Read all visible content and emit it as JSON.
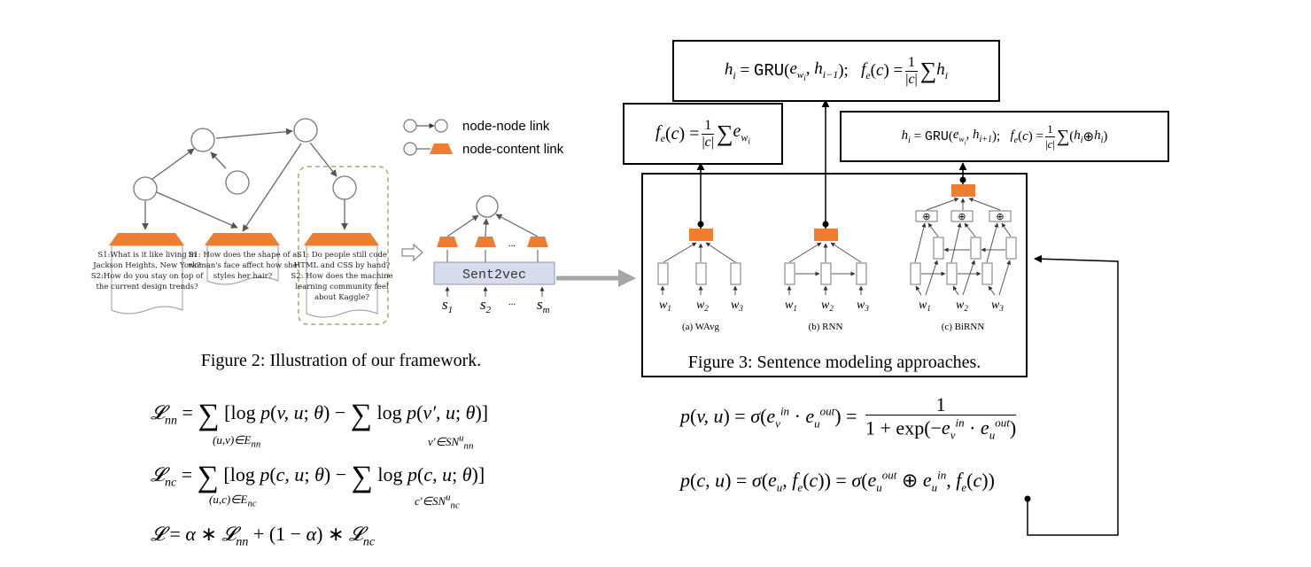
{
  "legend": {
    "node_node": "node-node link",
    "node_content": "node-content link"
  },
  "questions": {
    "doc1": [
      "S1:What is it like living in",
      "Jackson Heights, New York?",
      "S2:How do you stay on top of",
      "the current design trends?"
    ],
    "doc2": [
      "S1: How does the shape of a",
      "woman's face affect how she",
      "styles her hair?"
    ],
    "doc3": [
      "S1: Do people still code",
      "HTML and CSS by hand?",
      "S2: How does the machine",
      "learning community feel",
      "about Kaggle?"
    ]
  },
  "sent2vec": {
    "label": "Sent2vec",
    "inputs": [
      "s1",
      "s2",
      "...",
      "sm"
    ],
    "dots": "..."
  },
  "figure2_caption": "Figure 2: Illustration of our framework.",
  "figure3_caption": "Figure 3: Sentence modeling approaches.",
  "subfigures": [
    "(a) WAvg",
    "(b) RNN",
    "(c) BiRNN"
  ],
  "word_labels": [
    "w1",
    "w2",
    "w3"
  ],
  "formulas": {
    "wavg": "f_e(c) = 1/|c| Σ_i e_{w_i}",
    "rnn": "h_i→ = GRU(e_{w_i}, h_{i-1});  f_e(c) = 1/|c| Σ_i h_i→",
    "birnn": "h_i← = GRU(e_{w_i}, h_{i+1});  f_e(c) = 1/|c| Σ_i (h_i→ ⊕ h_i←)",
    "L_nn": "L_nn = Σ_{(u,v)∈E_nn} [log p(v,u;θ) − Σ_{v'∈SN^u_nn} log p(v',u;θ)]",
    "L_nc": "L_nc = Σ_{(u,c)∈E_nc} [log p(c,u;θ) − Σ_{c'∈SN^u_nc} log p(c,u;θ)]",
    "L": "L = α ∗ L_nn + (1 − α) ∗ L_nc",
    "p_vu": "p(v,u) = σ(e_v^in · e_u^out) = 1 / (1 + exp(−e_v^in · e_u^out))",
    "p_cu": "p(c,u) = σ(e_u, f_e(c)) = σ(e_u^out ⊕ e_u^in, f_e(c))"
  },
  "colors": {
    "orange": "#ED7D31",
    "node_fill": "#ffffff",
    "sent2vec_fill": "#D6DCEC",
    "arrow_gray": "#A6A6A6"
  }
}
